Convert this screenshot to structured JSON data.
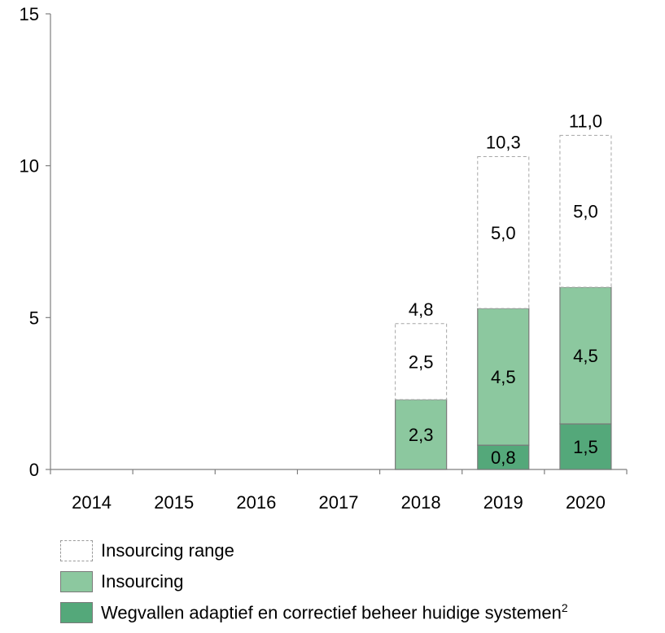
{
  "chart_data": {
    "type": "bar",
    "stacked": true,
    "categories": [
      "2014",
      "2015",
      "2016",
      "2017",
      "2018",
      "2019",
      "2020"
    ],
    "ylim": [
      0,
      15
    ],
    "yticks": [
      "0",
      "5",
      "10",
      "15"
    ],
    "series": [
      {
        "key": "weg",
        "name": "Wegvallen adaptief en correctief beheer huidige systemen",
        "color": "#54a87a",
        "values": [
          0,
          0,
          0,
          0,
          0,
          0.8,
          1.5
        ],
        "labels": [
          "",
          "",
          "",
          "",
          "",
          "0,8",
          "1,5"
        ]
      },
      {
        "key": "ins",
        "name": "Insourcing",
        "color": "#8cc89f",
        "values": [
          0,
          0,
          0,
          0,
          2.3,
          4.5,
          4.5
        ],
        "labels": [
          "",
          "",
          "",
          "",
          "2,3",
          "4,5",
          "4,5"
        ]
      },
      {
        "key": "range",
        "name": "Insourcing range",
        "color": "#ffffff",
        "values": [
          0,
          0,
          0,
          0,
          2.5,
          5.0,
          5.0
        ],
        "labels": [
          "",
          "",
          "",
          "",
          "2,5",
          "5,0",
          "5,0"
        ]
      }
    ],
    "totals": [
      "",
      "",
      "",
      "",
      "4,8",
      "10,3",
      "11,0"
    ],
    "total_values": [
      0,
      0,
      0,
      0,
      4.8,
      10.3,
      11.0
    ],
    "legend": {
      "items": [
        {
          "key": "range",
          "label": "Insourcing range",
          "sup": ""
        },
        {
          "key": "ins",
          "label": "Insourcing",
          "sup": ""
        },
        {
          "key": "weg",
          "label": "Wegvallen adaptief en correctief beheer huidige systemen",
          "sup": "2"
        }
      ]
    }
  }
}
